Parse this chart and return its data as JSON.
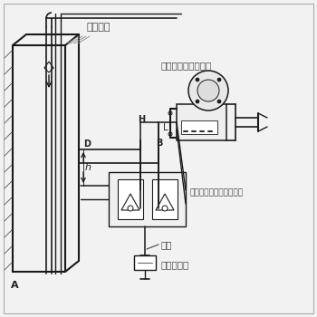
{
  "bg_color": "#f2f2f2",
  "line_color": "#1a1a1a",
  "text_color": "#444444",
  "label_color": "#222222",
  "figsize": [
    3.5,
    3.5
  ],
  "dpi": 100,
  "labels": {
    "blowing_pipe": "吹气管路",
    "diff_pressure": "差压（压力）变送器",
    "blowing_device": "吹气装置（含浮子流量计",
    "gas_source": "气源",
    "filter_valve": "过滤减压阀",
    "H": "H",
    "B": "B",
    "L": "L",
    "D": "D",
    "A": "A",
    "h": "h"
  }
}
